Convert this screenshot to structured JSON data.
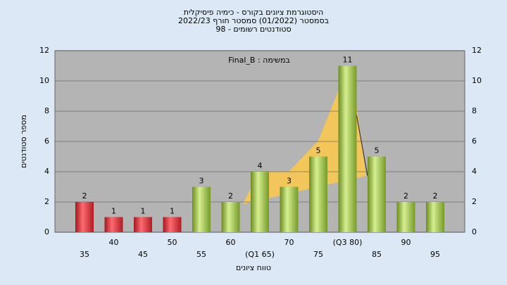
{
  "chart_data": {
    "type": "bar",
    "title": "היסטוגרמת ציונים בקורס - כימיה פיסיקלית",
    "subtitle": "בסמסטר  (01/2022)  סמסטר חורף 2022/23",
    "subtitle2": "סטודנטים רשומים - 98",
    "annotation": "Final_B : במשימה",
    "x_label": "טווח ציונים",
    "y_label": "מספר סטודנטים",
    "categories": [
      "35",
      "40",
      "45",
      "50",
      "55",
      "60",
      "(Q1 65)",
      "70",
      "75",
      "(Q3 80)",
      "85",
      "90",
      "95"
    ],
    "values": [
      2,
      1,
      1,
      1,
      3,
      2,
      4,
      3,
      5,
      11,
      5,
      2,
      2
    ],
    "colors": [
      "#e0303a",
      "#e0303a",
      "#e0303a",
      "#e0303a",
      "#9cc43c",
      "#9cc43c",
      "#9cc43c",
      "#9cc43c",
      "#9cc43c",
      "#9cc43c",
      "#9cc43c",
      "#9cc43c",
      "#9cc43c"
    ],
    "ylim": [
      0,
      12
    ],
    "yticks": [
      0,
      2,
      4,
      6,
      8,
      10,
      12
    ],
    "grid": true
  }
}
